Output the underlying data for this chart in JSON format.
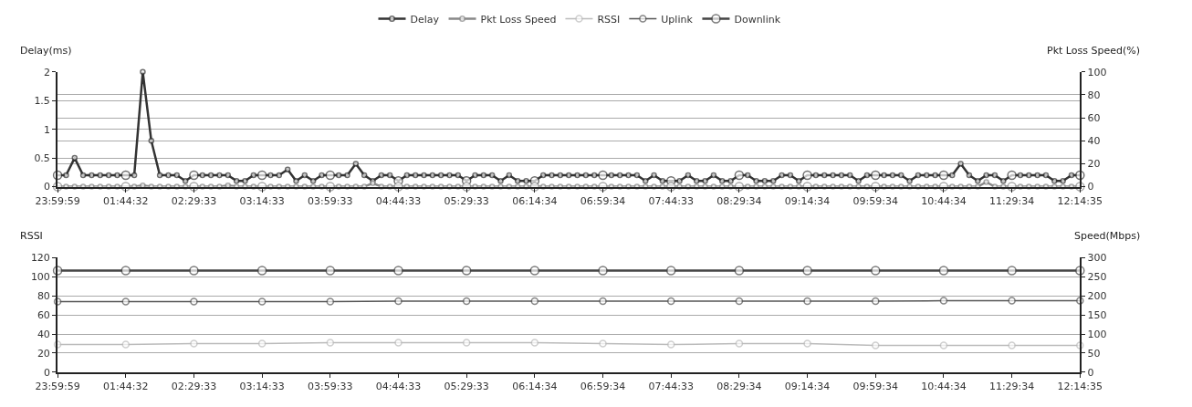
{
  "chart_data": [
    {
      "type": "line",
      "xlabel": null,
      "ylabel": "Delay(ms)",
      "y2label": "Pkt Loss Speed(%)",
      "categories": [
        "23:59:59",
        null,
        null,
        null,
        null,
        null,
        null,
        null,
        "01:44:32",
        null,
        null,
        null,
        null,
        null,
        null,
        null,
        "02:29:33",
        null,
        null,
        null,
        null,
        null,
        null,
        null,
        "03:14:33",
        null,
        null,
        null,
        null,
        null,
        null,
        null,
        "03:59:33",
        null,
        null,
        null,
        null,
        null,
        null,
        null,
        "04:44:33",
        null,
        null,
        null,
        null,
        null,
        null,
        null,
        "05:29:33",
        null,
        null,
        null,
        null,
        null,
        null,
        null,
        "06:14:34",
        null,
        null,
        null,
        null,
        null,
        null,
        null,
        "06:59:34",
        null,
        null,
        null,
        null,
        null,
        null,
        null,
        "07:44:33",
        null,
        null,
        null,
        null,
        null,
        null,
        null,
        "08:29:34",
        null,
        null,
        null,
        null,
        null,
        null,
        null,
        "09:14:34",
        null,
        null,
        null,
        null,
        null,
        null,
        null,
        "09:59:34",
        null,
        null,
        null,
        null,
        null,
        null,
        null,
        "10:44:34",
        null,
        null,
        null,
        null,
        null,
        null,
        null,
        "11:29:34",
        null,
        null,
        null,
        null,
        null,
        null,
        null,
        "12:14:35"
      ],
      "series": [
        {
          "name": "Delay",
          "color": "#333333",
          "axis": "y",
          "values": [
            0.2,
            0.2,
            0.5,
            0.2,
            0.2,
            0.2,
            0.2,
            0.2,
            0.2,
            0.2,
            2.0,
            0.8,
            0.2,
            0.2,
            0.2,
            0.1,
            0.2,
            0.2,
            0.2,
            0.2,
            0.2,
            0.1,
            0.1,
            0.2,
            0.2,
            0.2,
            0.2,
            0.3,
            0.1,
            0.2,
            0.1,
            0.2,
            0.2,
            0.2,
            0.2,
            0.4,
            0.2,
            0.1,
            0.2,
            0.2,
            0.1,
            0.2,
            0.2,
            0.2,
            0.2,
            0.2,
            0.2,
            0.2,
            0.1,
            0.2,
            0.2,
            0.2,
            0.1,
            0.2,
            0.1,
            0.1,
            0.1,
            0.2,
            0.2,
            0.2,
            0.2,
            0.2,
            0.2,
            0.2,
            0.2,
            0.2,
            0.2,
            0.2,
            0.2,
            0.1,
            0.2,
            0.1,
            0.1,
            0.1,
            0.2,
            0.1,
            0.1,
            0.2,
            0.1,
            0.1,
            0.2,
            0.2,
            0.1,
            0.1,
            0.1,
            0.2,
            0.2,
            0.1,
            0.2,
            0.2,
            0.2,
            0.2,
            0.2,
            0.2,
            0.1,
            0.2,
            0.2,
            0.2,
            0.2,
            0.2,
            0.1,
            0.2,
            0.2,
            0.2,
            0.2,
            0.2,
            0.4,
            0.2,
            0.1,
            0.2,
            0.2,
            0.1,
            0.2,
            0.2,
            0.2,
            0.2,
            0.2,
            0.1,
            0.1,
            0.2,
            0.2
          ]
        },
        {
          "name": "Pkt Loss Speed",
          "color": "#888888",
          "axis": "y2",
          "values": [
            0,
            0,
            0,
            0,
            0,
            0,
            0,
            0,
            0,
            0,
            1,
            0,
            0,
            0,
            0,
            0,
            0,
            0,
            0,
            0,
            1,
            0,
            0,
            0,
            0,
            0,
            0,
            0,
            0,
            0,
            0,
            0,
            0,
            0,
            0,
            0,
            0,
            3,
            0,
            0,
            0,
            0,
            0,
            0,
            0,
            0,
            0,
            0,
            0,
            0,
            0,
            0,
            0,
            0,
            0,
            0,
            0,
            0,
            0,
            0,
            0,
            0,
            0,
            0,
            0,
            0,
            0,
            0,
            0,
            0,
            0,
            0,
            0,
            0,
            0,
            0,
            0,
            0,
            0,
            0,
            0,
            0,
            0,
            0,
            0,
            0,
            0,
            0,
            0,
            0,
            0,
            0,
            0,
            0,
            0,
            0,
            0,
            0,
            0,
            0,
            0,
            0,
            0,
            0,
            0,
            0,
            0,
            0,
            0,
            4,
            0,
            0,
            0,
            0,
            0,
            0,
            0,
            0,
            0,
            0,
            0
          ]
        }
      ],
      "ylim": [
        0,
        2
      ],
      "yticks": [
        0,
        0.5,
        1,
        1.5,
        2
      ],
      "y2lim": [
        0,
        100
      ],
      "y2ticks": [
        0,
        20,
        40,
        60,
        80,
        100
      ],
      "grid": "y",
      "legend": "top",
      "marker": "circle",
      "line_style": "solid"
    },
    {
      "type": "line",
      "ylabel": "RSSI",
      "y2label": "Speed(Mbps)",
      "categories": [
        "23:59:59",
        "01:44:32",
        "02:29:33",
        "03:14:33",
        "03:59:33",
        "04:44:33",
        "05:29:33",
        "06:14:34",
        "06:59:34",
        "07:44:33",
        "08:29:34",
        "09:14:34",
        "09:59:34",
        "10:44:34",
        "11:29:34",
        "12:14:35"
      ],
      "series": [
        {
          "name": "RSSI",
          "color": "#bbbbbb",
          "axis": "y",
          "values": [
            29,
            29,
            30,
            30,
            31,
            31,
            31,
            31,
            30,
            29,
            30,
            30,
            28,
            28,
            28,
            28
          ]
        },
        {
          "name": "Uplink",
          "color": "#555555",
          "axis": "y2",
          "values": [
            185,
            185,
            185,
            185,
            185,
            186,
            186,
            186,
            186,
            186,
            186,
            186,
            186,
            187,
            187,
            187
          ]
        },
        {
          "name": "Downlink",
          "color": "#444444",
          "axis": "y2",
          "values": [
            266,
            266,
            266,
            266,
            266,
            266,
            266,
            266,
            266,
            266,
            266,
            266,
            266,
            266,
            266,
            266
          ]
        }
      ],
      "ylim": [
        0,
        120
      ],
      "yticks": [
        0,
        20,
        40,
        60,
        80,
        100,
        120
      ],
      "y2lim": [
        0,
        300
      ],
      "y2ticks": [
        0,
        50,
        100,
        150,
        200,
        250,
        300
      ],
      "grid": "y",
      "legend": "top",
      "marker": "circle",
      "line_style": "solid"
    }
  ]
}
